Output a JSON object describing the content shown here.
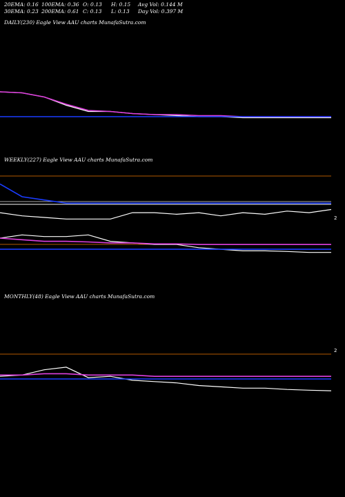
{
  "header": {
    "row1": [
      "20EMA: 0.16",
      "100EMA: 0.36",
      "O: 0.13",
      "H: 0.15",
      "Avg Vol: 0.144 M"
    ],
    "row2": [
      "30EMA: 0.23",
      "200EMA: 0.61",
      "C: 0.13",
      "L: 0.13",
      "Day Vol: 0.397 M"
    ]
  },
  "panels": {
    "daily_title": "DAILY(230) Eagle  View  AAU charts MunafaSutra.com",
    "weekly_title": "WEEKLY(227) Eagle  View  AAU charts MunafaSutra.com",
    "monthly_title": "MONTHLY(48) Eagle  View  AAU charts MunafaSutra.com"
  },
  "chart_data": [
    {
      "type": "line",
      "title": "DAILY(230) Eagle  View  AAU charts MunafaSutra.com",
      "series": [
        {
          "role": "price",
          "color": "#ffffff",
          "values": [
            0.38,
            0.37,
            0.33,
            0.25,
            0.19,
            0.19,
            0.17,
            0.16,
            0.15,
            0.14,
            0.14,
            0.13,
            0.13,
            0.13,
            0.13,
            0.13
          ]
        },
        {
          "role": "ema-fast",
          "color": "#e040e0",
          "values": [
            0.38,
            0.37,
            0.33,
            0.26,
            0.2,
            0.19,
            0.17,
            0.16,
            0.16,
            0.15,
            0.15,
            0.14,
            0.14,
            0.14,
            0.14,
            0.14
          ]
        },
        {
          "role": "ema-slow",
          "color": "#1a3cff",
          "values": [
            0.14,
            0.14,
            0.14,
            0.14,
            0.14,
            0.14,
            0.14,
            0.14,
            0.14,
            0.14,
            0.14,
            0.14,
            0.14,
            0.14,
            0.14,
            0.14
          ]
        }
      ]
    },
    {
      "type": "line",
      "title": "WEEKLY(227) Eagle  View  AAU charts MunafaSutra.com",
      "y_tick_label": "2",
      "series": [
        {
          "role": "price",
          "color": "#ffffff",
          "values": [
            1.7,
            1.6,
            1.55,
            1.5,
            1.5,
            1.5,
            1.7,
            1.7,
            1.65,
            1.7,
            1.6,
            1.7,
            1.65,
            1.75,
            1.7,
            1.8
          ]
        },
        {
          "role": "price-lower",
          "color": "#ffffff",
          "values": [
            0.9,
            1.0,
            0.95,
            0.95,
            1.0,
            0.8,
            0.75,
            0.7,
            0.7,
            0.6,
            0.55,
            0.5,
            0.5,
            0.48,
            0.45,
            0.45
          ]
        },
        {
          "role": "ema-upper",
          "color": "#1a3cff",
          "values": [
            2.6,
            2.2,
            2.1,
            2.0,
            2.0,
            2.0,
            2.0,
            2.0,
            2.0,
            2.0,
            2.0,
            2.0,
            2.0,
            2.0,
            2.0,
            2.0
          ]
        },
        {
          "role": "ema-mid",
          "color": "#e040e0",
          "values": [
            0.9,
            0.85,
            0.8,
            0.8,
            0.78,
            0.75,
            0.75,
            0.72,
            0.72,
            0.7,
            0.7,
            0.7,
            0.7,
            0.7,
            0.7,
            0.7
          ]
        },
        {
          "role": "ema-low",
          "color": "#1a3cff",
          "values": [
            0.55,
            0.55,
            0.55,
            0.55,
            0.55,
            0.55,
            0.55,
            0.55,
            0.55,
            0.55,
            0.55,
            0.55,
            0.55,
            0.55,
            0.55,
            0.55
          ]
        }
      ]
    },
    {
      "type": "line",
      "title": "MONTHLY(48) Eagle  View  AAU charts MunafaSutra.com",
      "y_tick_label": "2",
      "series": [
        {
          "role": "price",
          "color": "#ffffff",
          "values": [
            1.15,
            1.2,
            1.4,
            1.5,
            1.1,
            1.15,
            1.0,
            0.95,
            0.9,
            0.8,
            0.75,
            0.7,
            0.7,
            0.65,
            0.62,
            0.6
          ]
        },
        {
          "role": "ema-fast",
          "color": "#e040e0",
          "values": [
            1.2,
            1.2,
            1.25,
            1.25,
            1.2,
            1.2,
            1.2,
            1.15,
            1.15,
            1.15,
            1.15,
            1.15,
            1.15,
            1.15,
            1.15,
            1.15
          ]
        },
        {
          "role": "ema-slow",
          "color": "#1a3cff",
          "values": [
            1.05,
            1.05,
            1.05,
            1.05,
            1.05,
            1.05,
            1.05,
            1.05,
            1.05,
            1.05,
            1.05,
            1.05,
            1.05,
            1.05,
            1.05,
            1.05
          ]
        }
      ]
    }
  ]
}
